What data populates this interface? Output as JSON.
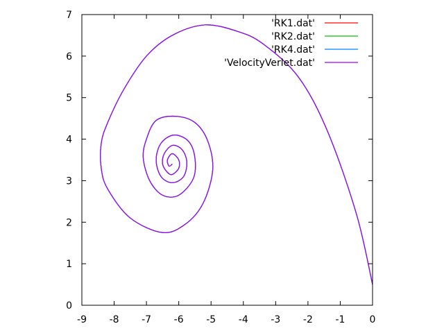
{
  "chart_data": {
    "type": "line",
    "title": "",
    "xlabel": "",
    "ylabel": "",
    "xlim": [
      -9,
      0
    ],
    "ylim": [
      0,
      7
    ],
    "x_ticks": [
      -9,
      -8,
      -7,
      -6,
      -5,
      -4,
      -3,
      -2,
      -1,
      0
    ],
    "y_ticks": [
      0,
      1,
      2,
      3,
      4,
      5,
      6,
      7
    ],
    "grid": false,
    "legend_position": "top-right",
    "series": [
      {
        "name": "'RK1.dat'",
        "color": "#ff0000",
        "points": [
          [
            0,
            0.5
          ],
          [
            -0.5,
            2.2
          ],
          [
            -1.4,
            4.2
          ],
          [
            -2.3,
            5.5
          ],
          [
            -3.4,
            6.3
          ],
          [
            -4.2,
            6.6
          ],
          [
            -5.2,
            6.75
          ],
          [
            -6.2,
            6.5
          ],
          [
            -7.0,
            6.0
          ],
          [
            -7.7,
            5.2
          ],
          [
            -8.2,
            4.4
          ],
          [
            -8.4,
            3.9
          ],
          [
            -8.4,
            3.3
          ],
          [
            -8.2,
            2.8
          ],
          [
            -7.5,
            2.1
          ],
          [
            -6.5,
            1.75
          ],
          [
            -5.8,
            1.95
          ],
          [
            -5.25,
            2.45
          ],
          [
            -4.95,
            3.25
          ],
          [
            -5.1,
            3.95
          ],
          [
            -5.5,
            4.4
          ],
          [
            -6.1,
            4.55
          ],
          [
            -6.7,
            4.45
          ],
          [
            -7.0,
            4.0
          ],
          [
            -7.1,
            3.55
          ],
          [
            -6.9,
            3.0
          ],
          [
            -6.5,
            2.65
          ],
          [
            -6.0,
            2.65
          ],
          [
            -5.55,
            3.05
          ],
          [
            -5.5,
            3.55
          ],
          [
            -5.7,
            3.95
          ],
          [
            -6.15,
            4.1
          ],
          [
            -6.55,
            3.9
          ],
          [
            -6.7,
            3.5
          ],
          [
            -6.55,
            3.1
          ],
          [
            -6.2,
            2.95
          ],
          [
            -5.85,
            3.1
          ],
          [
            -5.75,
            3.45
          ],
          [
            -5.9,
            3.75
          ],
          [
            -6.2,
            3.85
          ],
          [
            -6.45,
            3.65
          ],
          [
            -6.5,
            3.4
          ],
          [
            -6.35,
            3.2
          ],
          [
            -6.2,
            3.15
          ],
          [
            -6.0,
            3.3
          ],
          [
            -6.0,
            3.5
          ],
          [
            -6.2,
            3.65
          ],
          [
            -6.35,
            3.5
          ],
          [
            -6.3,
            3.35
          ],
          [
            -6.2,
            3.4
          ]
        ]
      },
      {
        "name": "'RK2.dat'",
        "color": "#00c000",
        "points": [
          [
            0,
            0.5
          ],
          [
            -0.5,
            2.2
          ],
          [
            -1.4,
            4.2
          ],
          [
            -2.3,
            5.5
          ],
          [
            -3.4,
            6.3
          ],
          [
            -4.2,
            6.6
          ],
          [
            -5.2,
            6.75
          ],
          [
            -6.2,
            6.5
          ],
          [
            -7.0,
            6.0
          ],
          [
            -7.7,
            5.2
          ],
          [
            -8.2,
            4.4
          ],
          [
            -8.4,
            3.9
          ],
          [
            -8.4,
            3.3
          ],
          [
            -8.2,
            2.8
          ],
          [
            -7.5,
            2.1
          ],
          [
            -6.5,
            1.75
          ],
          [
            -5.8,
            1.95
          ],
          [
            -5.25,
            2.45
          ],
          [
            -4.95,
            3.25
          ],
          [
            -5.1,
            3.95
          ],
          [
            -5.5,
            4.4
          ],
          [
            -6.1,
            4.55
          ],
          [
            -6.7,
            4.45
          ],
          [
            -7.0,
            4.0
          ],
          [
            -7.1,
            3.55
          ],
          [
            -6.9,
            3.0
          ],
          [
            -6.5,
            2.65
          ],
          [
            -6.0,
            2.65
          ],
          [
            -5.55,
            3.05
          ],
          [
            -5.5,
            3.55
          ],
          [
            -5.7,
            3.95
          ],
          [
            -6.15,
            4.1
          ],
          [
            -6.55,
            3.9
          ],
          [
            -6.7,
            3.5
          ],
          [
            -6.55,
            3.1
          ],
          [
            -6.2,
            2.95
          ],
          [
            -5.85,
            3.1
          ],
          [
            -5.75,
            3.45
          ],
          [
            -5.9,
            3.75
          ],
          [
            -6.2,
            3.85
          ],
          [
            -6.45,
            3.65
          ],
          [
            -6.5,
            3.4
          ],
          [
            -6.35,
            3.2
          ],
          [
            -6.2,
            3.15
          ],
          [
            -6.0,
            3.3
          ],
          [
            -6.0,
            3.5
          ],
          [
            -6.2,
            3.65
          ],
          [
            -6.35,
            3.5
          ],
          [
            -6.3,
            3.35
          ],
          [
            -6.2,
            3.4
          ]
        ]
      },
      {
        "name": "'RK4.dat'",
        "color": "#0080ff",
        "points": [
          [
            0,
            0.5
          ],
          [
            -0.5,
            2.2
          ],
          [
            -1.4,
            4.2
          ],
          [
            -2.3,
            5.5
          ],
          [
            -3.4,
            6.3
          ],
          [
            -4.2,
            6.6
          ],
          [
            -5.2,
            6.75
          ],
          [
            -6.2,
            6.5
          ],
          [
            -7.0,
            6.0
          ],
          [
            -7.7,
            5.2
          ],
          [
            -8.2,
            4.4
          ],
          [
            -8.4,
            3.9
          ],
          [
            -8.4,
            3.3
          ],
          [
            -8.2,
            2.8
          ],
          [
            -7.5,
            2.1
          ],
          [
            -6.5,
            1.75
          ],
          [
            -5.8,
            1.95
          ],
          [
            -5.25,
            2.45
          ],
          [
            -4.95,
            3.25
          ],
          [
            -5.1,
            3.95
          ],
          [
            -5.5,
            4.4
          ],
          [
            -6.1,
            4.55
          ],
          [
            -6.7,
            4.45
          ],
          [
            -7.0,
            4.0
          ],
          [
            -7.1,
            3.55
          ],
          [
            -6.9,
            3.0
          ],
          [
            -6.5,
            2.65
          ],
          [
            -6.0,
            2.65
          ],
          [
            -5.55,
            3.05
          ],
          [
            -5.5,
            3.55
          ],
          [
            -5.7,
            3.95
          ],
          [
            -6.15,
            4.1
          ],
          [
            -6.55,
            3.9
          ],
          [
            -6.7,
            3.5
          ],
          [
            -6.55,
            3.1
          ],
          [
            -6.2,
            2.95
          ],
          [
            -5.85,
            3.1
          ],
          [
            -5.75,
            3.45
          ],
          [
            -5.9,
            3.75
          ],
          [
            -6.2,
            3.85
          ],
          [
            -6.45,
            3.65
          ],
          [
            -6.5,
            3.4
          ],
          [
            -6.35,
            3.2
          ],
          [
            -6.2,
            3.15
          ],
          [
            -6.0,
            3.3
          ],
          [
            -6.0,
            3.5
          ],
          [
            -6.2,
            3.65
          ],
          [
            -6.35,
            3.5
          ],
          [
            -6.3,
            3.35
          ],
          [
            -6.2,
            3.4
          ]
        ]
      },
      {
        "name": "'VelocityVerlet.dat'",
        "color": "#a000ff",
        "points": [
          [
            0,
            0.5
          ],
          [
            -0.5,
            2.2
          ],
          [
            -1.4,
            4.2
          ],
          [
            -2.3,
            5.5
          ],
          [
            -3.4,
            6.3
          ],
          [
            -4.2,
            6.6
          ],
          [
            -5.2,
            6.75
          ],
          [
            -6.2,
            6.5
          ],
          [
            -7.0,
            6.0
          ],
          [
            -7.7,
            5.2
          ],
          [
            -8.2,
            4.4
          ],
          [
            -8.4,
            3.9
          ],
          [
            -8.4,
            3.3
          ],
          [
            -8.2,
            2.8
          ],
          [
            -7.5,
            2.1
          ],
          [
            -6.5,
            1.75
          ],
          [
            -5.8,
            1.95
          ],
          [
            -5.25,
            2.45
          ],
          [
            -4.95,
            3.25
          ],
          [
            -5.1,
            3.95
          ],
          [
            -5.5,
            4.4
          ],
          [
            -6.1,
            4.55
          ],
          [
            -6.7,
            4.45
          ],
          [
            -7.0,
            4.0
          ],
          [
            -7.1,
            3.55
          ],
          [
            -6.9,
            3.0
          ],
          [
            -6.5,
            2.65
          ],
          [
            -6.0,
            2.65
          ],
          [
            -5.55,
            3.05
          ],
          [
            -5.5,
            3.55
          ],
          [
            -5.7,
            3.95
          ],
          [
            -6.15,
            4.1
          ],
          [
            -6.55,
            3.9
          ],
          [
            -6.7,
            3.5
          ],
          [
            -6.55,
            3.1
          ],
          [
            -6.2,
            2.95
          ],
          [
            -5.85,
            3.1
          ],
          [
            -5.75,
            3.45
          ],
          [
            -5.9,
            3.75
          ],
          [
            -6.2,
            3.85
          ],
          [
            -6.45,
            3.65
          ],
          [
            -6.5,
            3.4
          ],
          [
            -6.35,
            3.2
          ],
          [
            -6.2,
            3.15
          ],
          [
            -6.0,
            3.3
          ],
          [
            -6.0,
            3.5
          ],
          [
            -6.2,
            3.65
          ],
          [
            -6.35,
            3.5
          ],
          [
            -6.3,
            3.35
          ],
          [
            -6.2,
            3.4
          ]
        ]
      }
    ]
  }
}
